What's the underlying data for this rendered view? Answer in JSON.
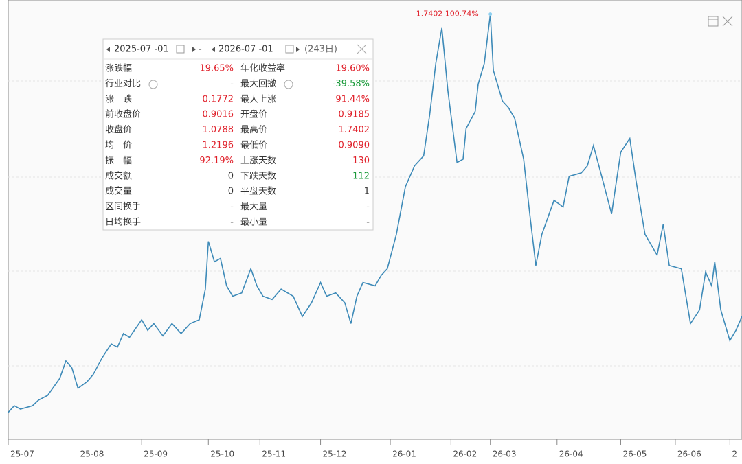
{
  "chart_data": {
    "type": "line",
    "annotation": "1.7402 100.74%",
    "color": "#3d8ab8",
    "x": [
      0,
      2,
      4,
      8,
      10,
      13,
      17,
      19,
      21,
      23,
      26,
      28,
      31,
      34,
      36,
      38,
      40,
      44,
      46,
      48,
      51,
      54,
      57,
      60,
      63,
      65,
      66,
      68,
      70,
      72,
      74,
      77,
      80,
      82,
      84,
      87,
      90,
      94,
      97,
      100,
      103,
      105,
      108,
      111,
      113,
      115,
      117,
      121,
      123,
      125,
      128,
      131,
      134,
      137,
      139,
      141,
      143,
      145,
      148,
      150,
      151,
      154,
      155,
      157,
      159,
      160,
      163,
      165,
      167,
      170,
      172,
      174,
      176,
      180,
      183,
      185,
      189,
      191,
      193,
      196,
      199,
      200,
      202,
      205,
      207,
      210,
      214,
      216,
      218,
      222,
      225,
      228,
      230,
      232,
      233,
      235,
      238,
      240,
      242
    ],
    "series": [
      {
        "values": [
          0.897,
          0.911,
          0.904,
          0.911,
          0.923,
          0.933,
          0.969,
          1.006,
          0.991,
          0.948,
          0.962,
          0.977,
          1.013,
          1.042,
          1.035,
          1.064,
          1.056,
          1.093,
          1.071,
          1.085,
          1.059,
          1.085,
          1.064,
          1.085,
          1.093,
          1.158,
          1.259,
          1.216,
          1.223,
          1.165,
          1.143,
          1.15,
          1.201,
          1.165,
          1.143,
          1.136,
          1.158,
          1.143,
          1.1,
          1.129,
          1.172,
          1.143,
          1.15,
          1.129,
          1.085,
          1.143,
          1.172,
          1.165,
          1.187,
          1.201,
          1.274,
          1.375,
          1.419,
          1.44,
          1.527,
          1.636,
          1.711,
          1.578,
          1.426,
          1.433,
          1.498,
          1.534,
          1.592,
          1.636,
          1.7402,
          1.621,
          1.556,
          1.542,
          1.52,
          1.433,
          1.317,
          1.208,
          1.274,
          1.346,
          1.332,
          1.397,
          1.404,
          1.419,
          1.462,
          1.39,
          1.317,
          1.361,
          1.448,
          1.477,
          1.39,
          1.274,
          1.23,
          1.295,
          1.208,
          1.201,
          1.085,
          1.114,
          1.194,
          1.165,
          1.216,
          1.114,
          1.049,
          1.071,
          1.1
        ]
      }
    ],
    "xlim": [
      0,
      242
    ],
    "ylim": [
      0.84,
      1.744
    ],
    "xticks": [
      {
        "value": 0,
        "label": "25-07"
      },
      {
        "value": 23,
        "label": "25-08"
      },
      {
        "value": 44,
        "label": "25-09"
      },
      {
        "value": 66,
        "label": "25-10"
      },
      {
        "value": 83,
        "label": "25-11"
      },
      {
        "value": 103,
        "label": "25-12"
      },
      {
        "value": 126,
        "label": "26-01"
      },
      {
        "value": 146,
        "label": "26-02"
      },
      {
        "value": 159,
        "label": "26-03"
      },
      {
        "value": 181,
        "label": "26-04"
      },
      {
        "value": 202,
        "label": "26-05"
      },
      {
        "value": 220,
        "label": "26-06"
      },
      {
        "value": 238,
        "label": "2"
      }
    ]
  },
  "panel": {
    "start_date": "2025-07 -01",
    "separator": "-",
    "end_date": "2026-07 -01",
    "days": "(243日)",
    "rows": [
      [
        {
          "label": "涨跌幅",
          "value": "19.65%",
          "color": "#e0202a"
        },
        {
          "label": "年化收益率",
          "value": "19.60%",
          "color": "#e0202a"
        }
      ],
      [
        {
          "label": "行业对比",
          "value": "-",
          "color": "#666666"
        },
        {
          "label": "最大回撤",
          "value": "-39.58%",
          "color": "#1a9a3a"
        }
      ],
      [
        {
          "label": "涨　跌",
          "value": "0.1772",
          "color": "#e0202a"
        },
        {
          "label": "最大上涨",
          "value": "91.44%",
          "color": "#e0202a"
        }
      ],
      [
        {
          "label": "前收盘价",
          "value": "0.9016",
          "color": "#e0202a"
        },
        {
          "label": "开盘价",
          "value": "0.9185",
          "color": "#e0202a"
        }
      ],
      [
        {
          "label": "收盘价",
          "value": "1.0788",
          "color": "#e0202a"
        },
        {
          "label": "最高价",
          "value": "1.7402",
          "color": "#e0202a"
        }
      ],
      [
        {
          "label": "均　价",
          "value": "1.2196",
          "color": "#e0202a"
        },
        {
          "label": "最低价",
          "value": "0.9090",
          "color": "#e0202a"
        }
      ],
      [
        {
          "label": "振　幅",
          "value": "92.19%",
          "color": "#e0202a"
        },
        {
          "label": "上涨天数",
          "value": "130",
          "color": "#e0202a"
        }
      ],
      [
        {
          "label": "成交额",
          "value": "0",
          "color": "#333333"
        },
        {
          "label": "下跌天数",
          "value": "112",
          "color": "#1a9a3a"
        }
      ],
      [
        {
          "label": "成交量",
          "value": "0",
          "color": "#333333"
        },
        {
          "label": "平盘天数",
          "value": "1",
          "color": "#333333"
        }
      ],
      [
        {
          "label": "区间换手",
          "value": "-",
          "color": "#666666"
        },
        {
          "label": "最大量",
          "value": "-",
          "color": "#666666"
        }
      ],
      [
        {
          "label": "日均换手",
          "value": "-",
          "color": "#666666"
        },
        {
          "label": "最小量",
          "value": "-",
          "color": "#666666"
        }
      ]
    ]
  }
}
